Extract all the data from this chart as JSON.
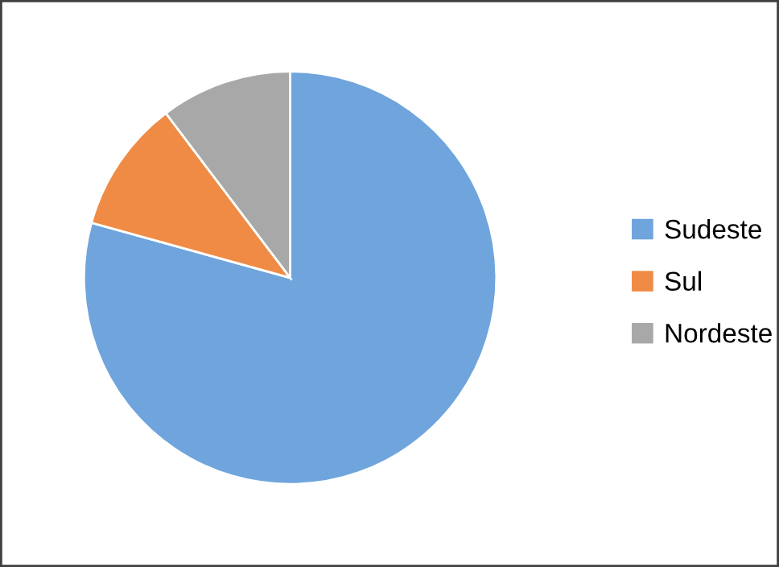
{
  "chart_data": {
    "type": "pie",
    "categories": [
      "Sudeste",
      "Sul",
      "Nordeste"
    ],
    "values": [
      79.3,
      10.4,
      10.3
    ],
    "colors": [
      "#6fa4dc",
      "#ef8b45",
      "#a8a8a8"
    ],
    "legend": "right"
  }
}
